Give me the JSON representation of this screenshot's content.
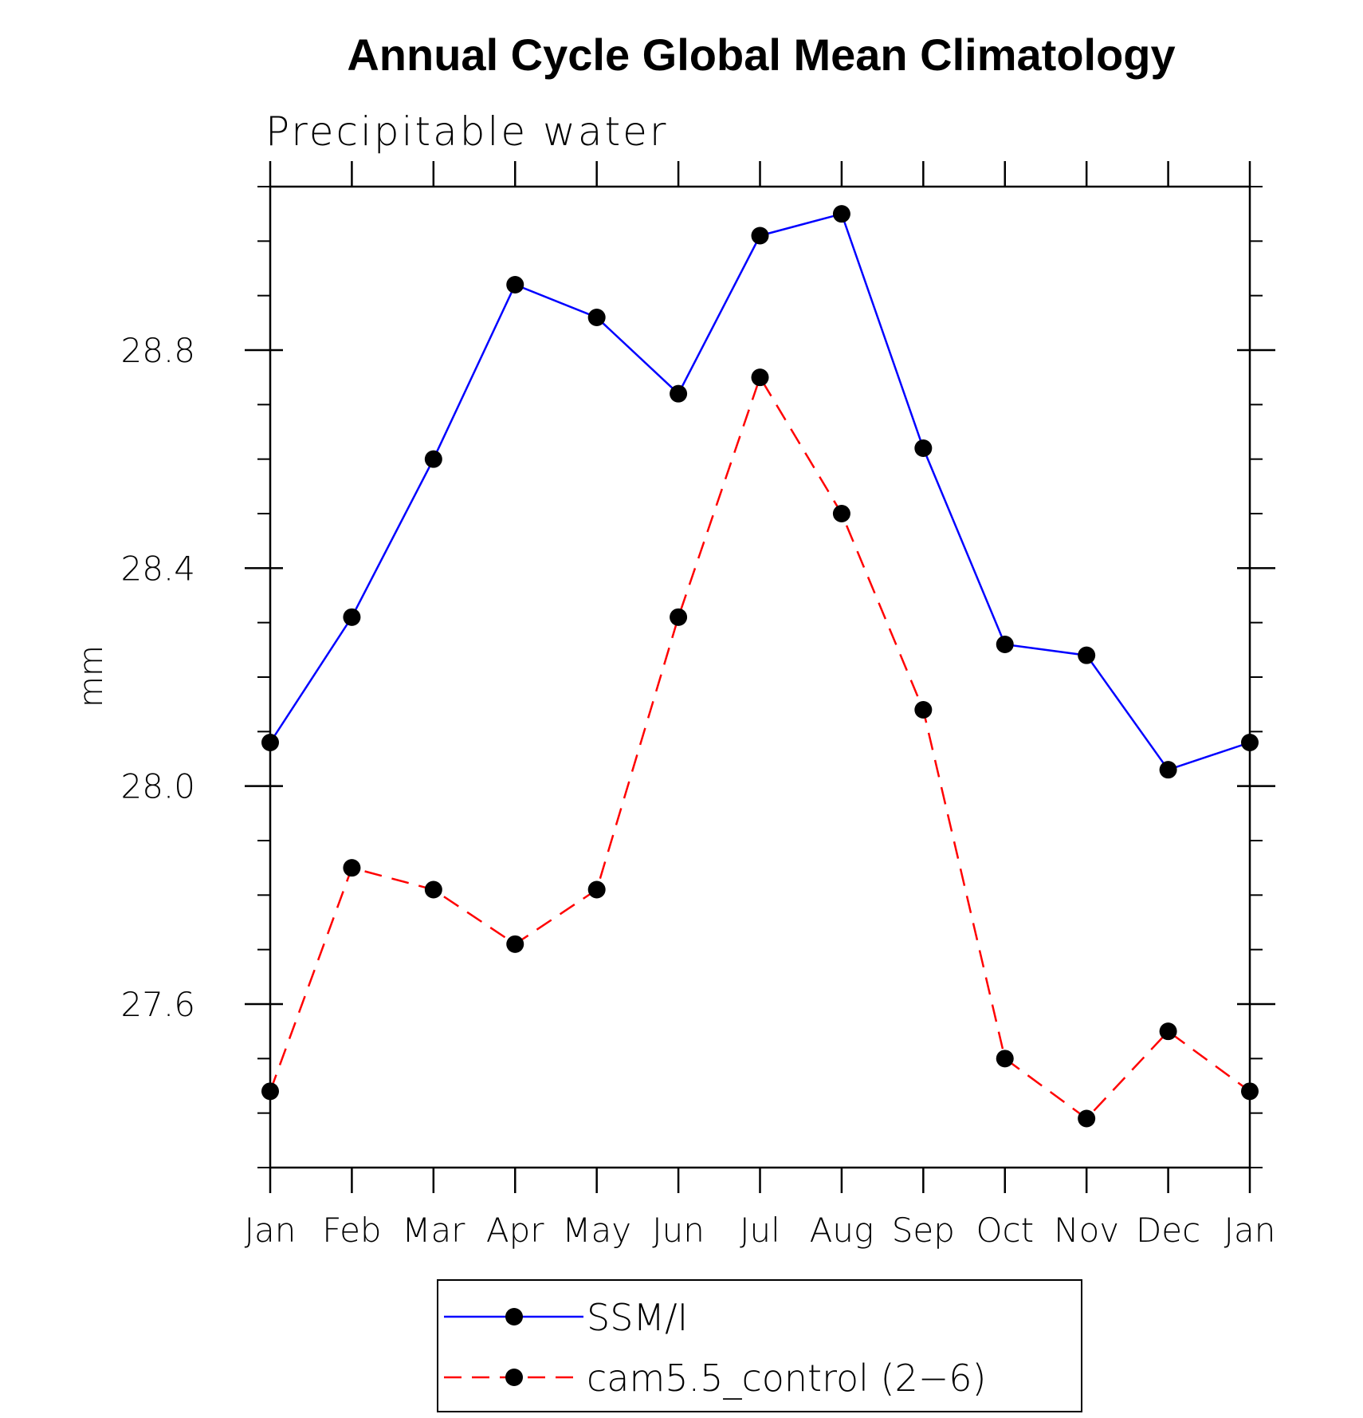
{
  "chart_data": {
    "type": "line",
    "title": "Annual Cycle Global Mean Climatology",
    "subtitle": "Precipitable water",
    "ylabel": "mm",
    "xlabel": "",
    "categories": [
      "Jan",
      "Feb",
      "Mar",
      "Apr",
      "May",
      "Jun",
      "Jul",
      "Aug",
      "Sep",
      "Oct",
      "Nov",
      "Dec",
      "Jan"
    ],
    "ylim": [
      27.3,
      29.1
    ],
    "yticks": [
      27.6,
      28.0,
      28.4,
      28.8
    ],
    "ytick_labels": [
      "27.6",
      "28.0",
      "28.4",
      "28.8"
    ],
    "yminor_step": 0.1,
    "grid": false,
    "legend_position": "bottom",
    "series": [
      {
        "name": "SSM/I",
        "color": "#0000ff",
        "dash": "solid",
        "values": [
          28.08,
          28.31,
          28.6,
          28.92,
          28.86,
          28.72,
          29.01,
          29.05,
          28.62,
          28.26,
          28.24,
          28.03,
          28.08
        ]
      },
      {
        "name": "cam5.5_control (2−6)",
        "color": "#ff0000",
        "dash": "dashed",
        "values": [
          27.44,
          27.85,
          27.81,
          27.71,
          27.81,
          28.31,
          28.75,
          28.5,
          28.14,
          27.5,
          27.39,
          27.55,
          27.44
        ]
      }
    ]
  }
}
